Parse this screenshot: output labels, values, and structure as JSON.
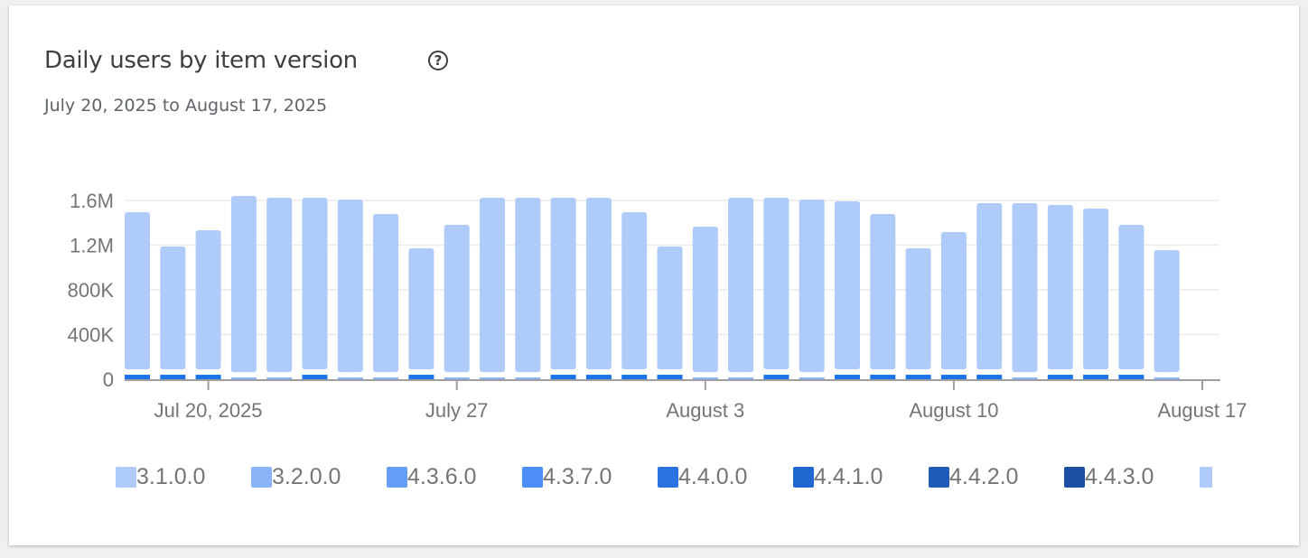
{
  "header": {
    "title": "Daily users by item version",
    "help_icon": "help-circle-icon",
    "subtitle": "July 20, 2025 to August 17, 2025"
  },
  "chart_data": {
    "type": "bar",
    "stacked": true,
    "title": "Daily users by item version",
    "xlabel": "",
    "ylabel": "",
    "ylim": [
      0,
      1600000
    ],
    "yticks": [
      "0",
      "400K",
      "800K",
      "1.2M",
      "1.6M"
    ],
    "ytick_values": [
      0,
      400000,
      800000,
      1200000,
      1600000
    ],
    "xticks": [
      {
        "label": "Jul 20, 2025",
        "date": "2025-07-20"
      },
      {
        "label": "July 27",
        "date": "2025-07-27"
      },
      {
        "label": "August 3",
        "date": "2025-08-03"
      },
      {
        "label": "August 10",
        "date": "2025-08-10"
      },
      {
        "label": "August 17",
        "date": "2025-08-17"
      }
    ],
    "grid": true,
    "legend_position": "bottom",
    "categories": [
      "2025-07-18",
      "2025-07-19",
      "2025-07-20",
      "2025-07-21",
      "2025-07-22",
      "2025-07-23",
      "2025-07-24",
      "2025-07-25",
      "2025-07-26",
      "2025-07-27",
      "2025-07-28",
      "2025-07-29",
      "2025-07-30",
      "2025-07-31",
      "2025-08-01",
      "2025-08-02",
      "2025-08-03",
      "2025-08-04",
      "2025-08-05",
      "2025-08-06",
      "2025-08-07",
      "2025-08-08",
      "2025-08-09",
      "2025-08-10",
      "2025-08-11",
      "2025-08-12",
      "2025-08-13",
      "2025-08-14",
      "2025-08-15",
      "2025-08-16"
    ],
    "series": [
      {
        "name": "4.4.0.0",
        "color": "#1a73e8",
        "values": [
          40000,
          40000,
          40000,
          0,
          0,
          40000,
          0,
          0,
          40000,
          0,
          0,
          0,
          40000,
          40000,
          40000,
          40000,
          0,
          0,
          40000,
          0,
          40000,
          40000,
          40000,
          40000,
          40000,
          0,
          40000,
          40000,
          40000,
          0
        ]
      },
      {
        "name": "3.2.0.0",
        "color": "#8ab4f8",
        "values": [
          0,
          0,
          0,
          15000,
          15000,
          0,
          15000,
          15000,
          0,
          15000,
          15000,
          15000,
          0,
          0,
          0,
          0,
          15000,
          15000,
          0,
          15000,
          0,
          0,
          0,
          0,
          0,
          15000,
          0,
          0,
          0,
          15000
        ]
      },
      {
        "name": "3.1.0.0",
        "color": "#aecbfa",
        "values": [
          1406000,
          1099000,
          1245000,
          1577000,
          1561000,
          1536000,
          1545000,
          1415000,
          1083000,
          1318000,
          1561000,
          1561000,
          1536000,
          1536000,
          1406000,
          1099000,
          1302000,
          1561000,
          1536000,
          1545000,
          1503000,
          1390000,
          1083000,
          1229000,
          1487000,
          1512000,
          1471000,
          1439000,
          1293000,
          1092000
        ]
      }
    ],
    "legend": [
      {
        "name": "3.1.0.0",
        "color": "#aecbfa"
      },
      {
        "name": "3.2.0.0",
        "color": "#8ab4f8"
      },
      {
        "name": "4.3.6.0",
        "color": "#669df6"
      },
      {
        "name": "4.3.7.0",
        "color": "#4c8df6"
      },
      {
        "name": "4.4.0.0",
        "color": "#2a73e0"
      },
      {
        "name": "4.4.1.0",
        "color": "#2167d0"
      },
      {
        "name": "4.4.2.0",
        "color": "#1f5bb8"
      },
      {
        "name": "4.4.3.0",
        "color": "#1c4fa2"
      },
      {
        "name": "",
        "color": "#aecbfa"
      }
    ]
  }
}
